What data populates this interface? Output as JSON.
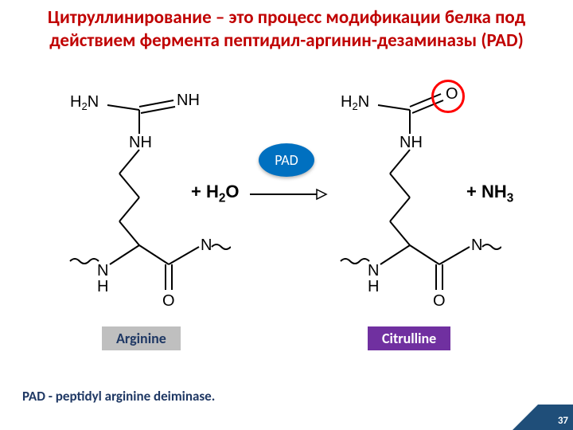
{
  "title": {
    "text": "Цитруллинирование – это процесс модификации белка под действием фермента пептидил-аргинин-дезаминазы (PAD)",
    "color": "#c00000",
    "fontsize": 23
  },
  "pad_pill": {
    "label": "PAD",
    "bg": "#0070c0",
    "text_color": "#ffffff"
  },
  "arrow": {
    "stroke": "#000000",
    "width": 2,
    "length": 90
  },
  "red_circle": {
    "stroke": "#ff0000",
    "stroke_width": 3,
    "diameter": 42
  },
  "left": {
    "name": "Arginine",
    "name_bg": "#bfbfbf",
    "name_color": "#1f3864",
    "top_left_label": "H2N",
    "top_right_label": "NH",
    "plus_label": "+ H2O"
  },
  "right": {
    "name": "Citrulline",
    "name_bg": "#7030a0",
    "name_color": "#ffffff",
    "top_left_label": "H2N",
    "top_right_label": "O",
    "plus_label": "+ NH3"
  },
  "backbone_labels": {
    "nh_upper": "NH",
    "n": "N",
    "h": "H",
    "o": "O"
  },
  "footnote": {
    "text": "PAD - peptidyl arginine deiminase.",
    "color": "#1f3864"
  },
  "page_number": "37",
  "page_corner_bg": "#1f4e79",
  "background": "#ffffff"
}
